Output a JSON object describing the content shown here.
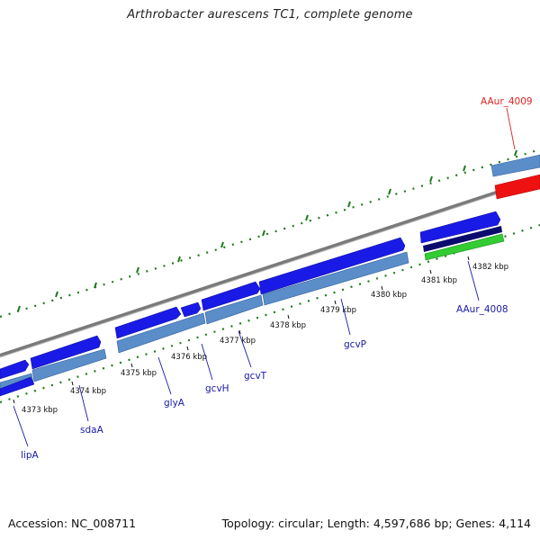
{
  "map": {
    "title": "Arthrobacter aurescens TC1, complete genome",
    "accession_text": "Accession: NC_008711",
    "summary_text": "Topology: circular; Length: 4,597,686 bp; Genes: 4,114",
    "colors": {
      "backbone": "#8c8c8c",
      "forward_cds": "#1a1ae6",
      "gene_track": "#5b8ec9",
      "rna": "#ee1111",
      "misc_dark": "#0b0b6e",
      "misc_green": "#33cc33",
      "gc_dots": "#1e7a1e",
      "label_blue": "#1a1aa8",
      "label_red": "#dd2222"
    },
    "tick_labels": [
      "4373 kbp",
      "4374 kbp",
      "4375 kbp",
      "4376 kbp",
      "4377 kbp",
      "4378 kbp",
      "4379 kbp",
      "4380 kbp",
      "4381 kbp",
      "4382 kbp"
    ],
    "gene_labels": [
      {
        "id": "lipA",
        "text": "lipA",
        "color": "blue"
      },
      {
        "id": "sdaA",
        "text": "sdaA",
        "color": "blue"
      },
      {
        "id": "glyA",
        "text": "glyA",
        "color": "blue"
      },
      {
        "id": "gcvH",
        "text": "gcvH",
        "color": "blue"
      },
      {
        "id": "gcvT",
        "text": "gcvT",
        "color": "blue"
      },
      {
        "id": "gcvP",
        "text": "gcvP",
        "color": "blue"
      },
      {
        "id": "AAur_4008",
        "text": "AAur_4008",
        "color": "blue"
      },
      {
        "id": "AAur_4009",
        "text": "AAur_4009",
        "color": "red"
      }
    ]
  }
}
